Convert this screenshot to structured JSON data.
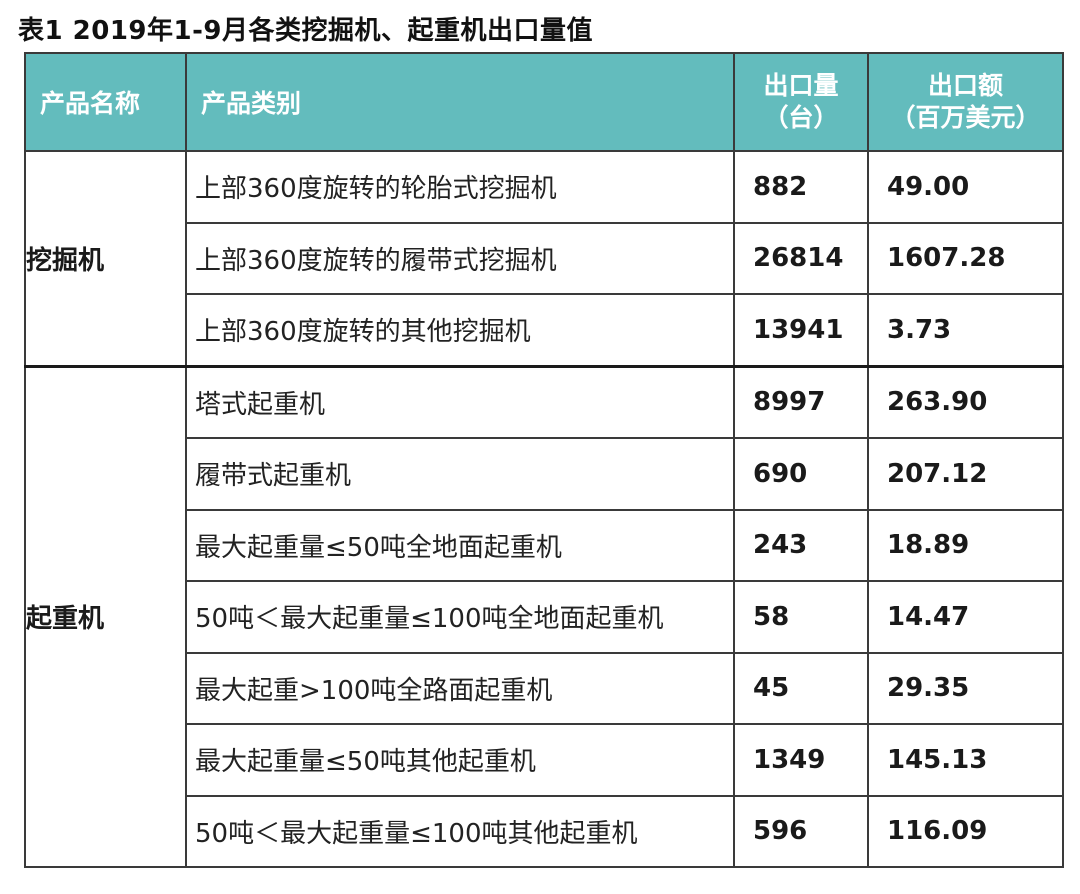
{
  "title": "表1  2019年1-9月各类挖掘机、起重机出口量值",
  "header": {
    "col1": "产品名称",
    "col2": "产品类别",
    "col3_line1": "出口量",
    "col3_line2": "（台）",
    "col4_line1": "出口额",
    "col4_line2": "（百万美元）"
  },
  "header_color": "#63bcbd",
  "groups": [
    {
      "name": "挖掘机",
      "rows": [
        {
          "category": "上部360度旋转的轮胎式挖掘机",
          "quantity": "882",
          "value": "49.00"
        },
        {
          "category": "上部360度旋转的履带式挖掘机",
          "quantity": "26814",
          "value": "1607.28"
        },
        {
          "category": "上部360度旋转的其他挖掘机",
          "quantity": "13941",
          "value": "3.73"
        }
      ]
    },
    {
      "name": "起重机",
      "rows": [
        {
          "category": "塔式起重机",
          "quantity": "8997",
          "value": "263.90"
        },
        {
          "category": "履带式起重机",
          "quantity": "690",
          "value": "207.12"
        },
        {
          "category": "最大起重量≤50吨全地面起重机",
          "quantity": "243",
          "value": "18.89"
        },
        {
          "category": "50吨＜最大起重量≤100吨全地面起重机",
          "quantity": "58",
          "value": "14.47"
        },
        {
          "category": "最大起重>100吨全路面起重机",
          "quantity": "45",
          "value": "29.35"
        },
        {
          "category": "最大起重量≤50吨其他起重机",
          "quantity": "1349",
          "value": "145.13"
        },
        {
          "category": "50吨＜最大起重量≤100吨其他起重机",
          "quantity": "596",
          "value": "116.09"
        }
      ]
    }
  ]
}
